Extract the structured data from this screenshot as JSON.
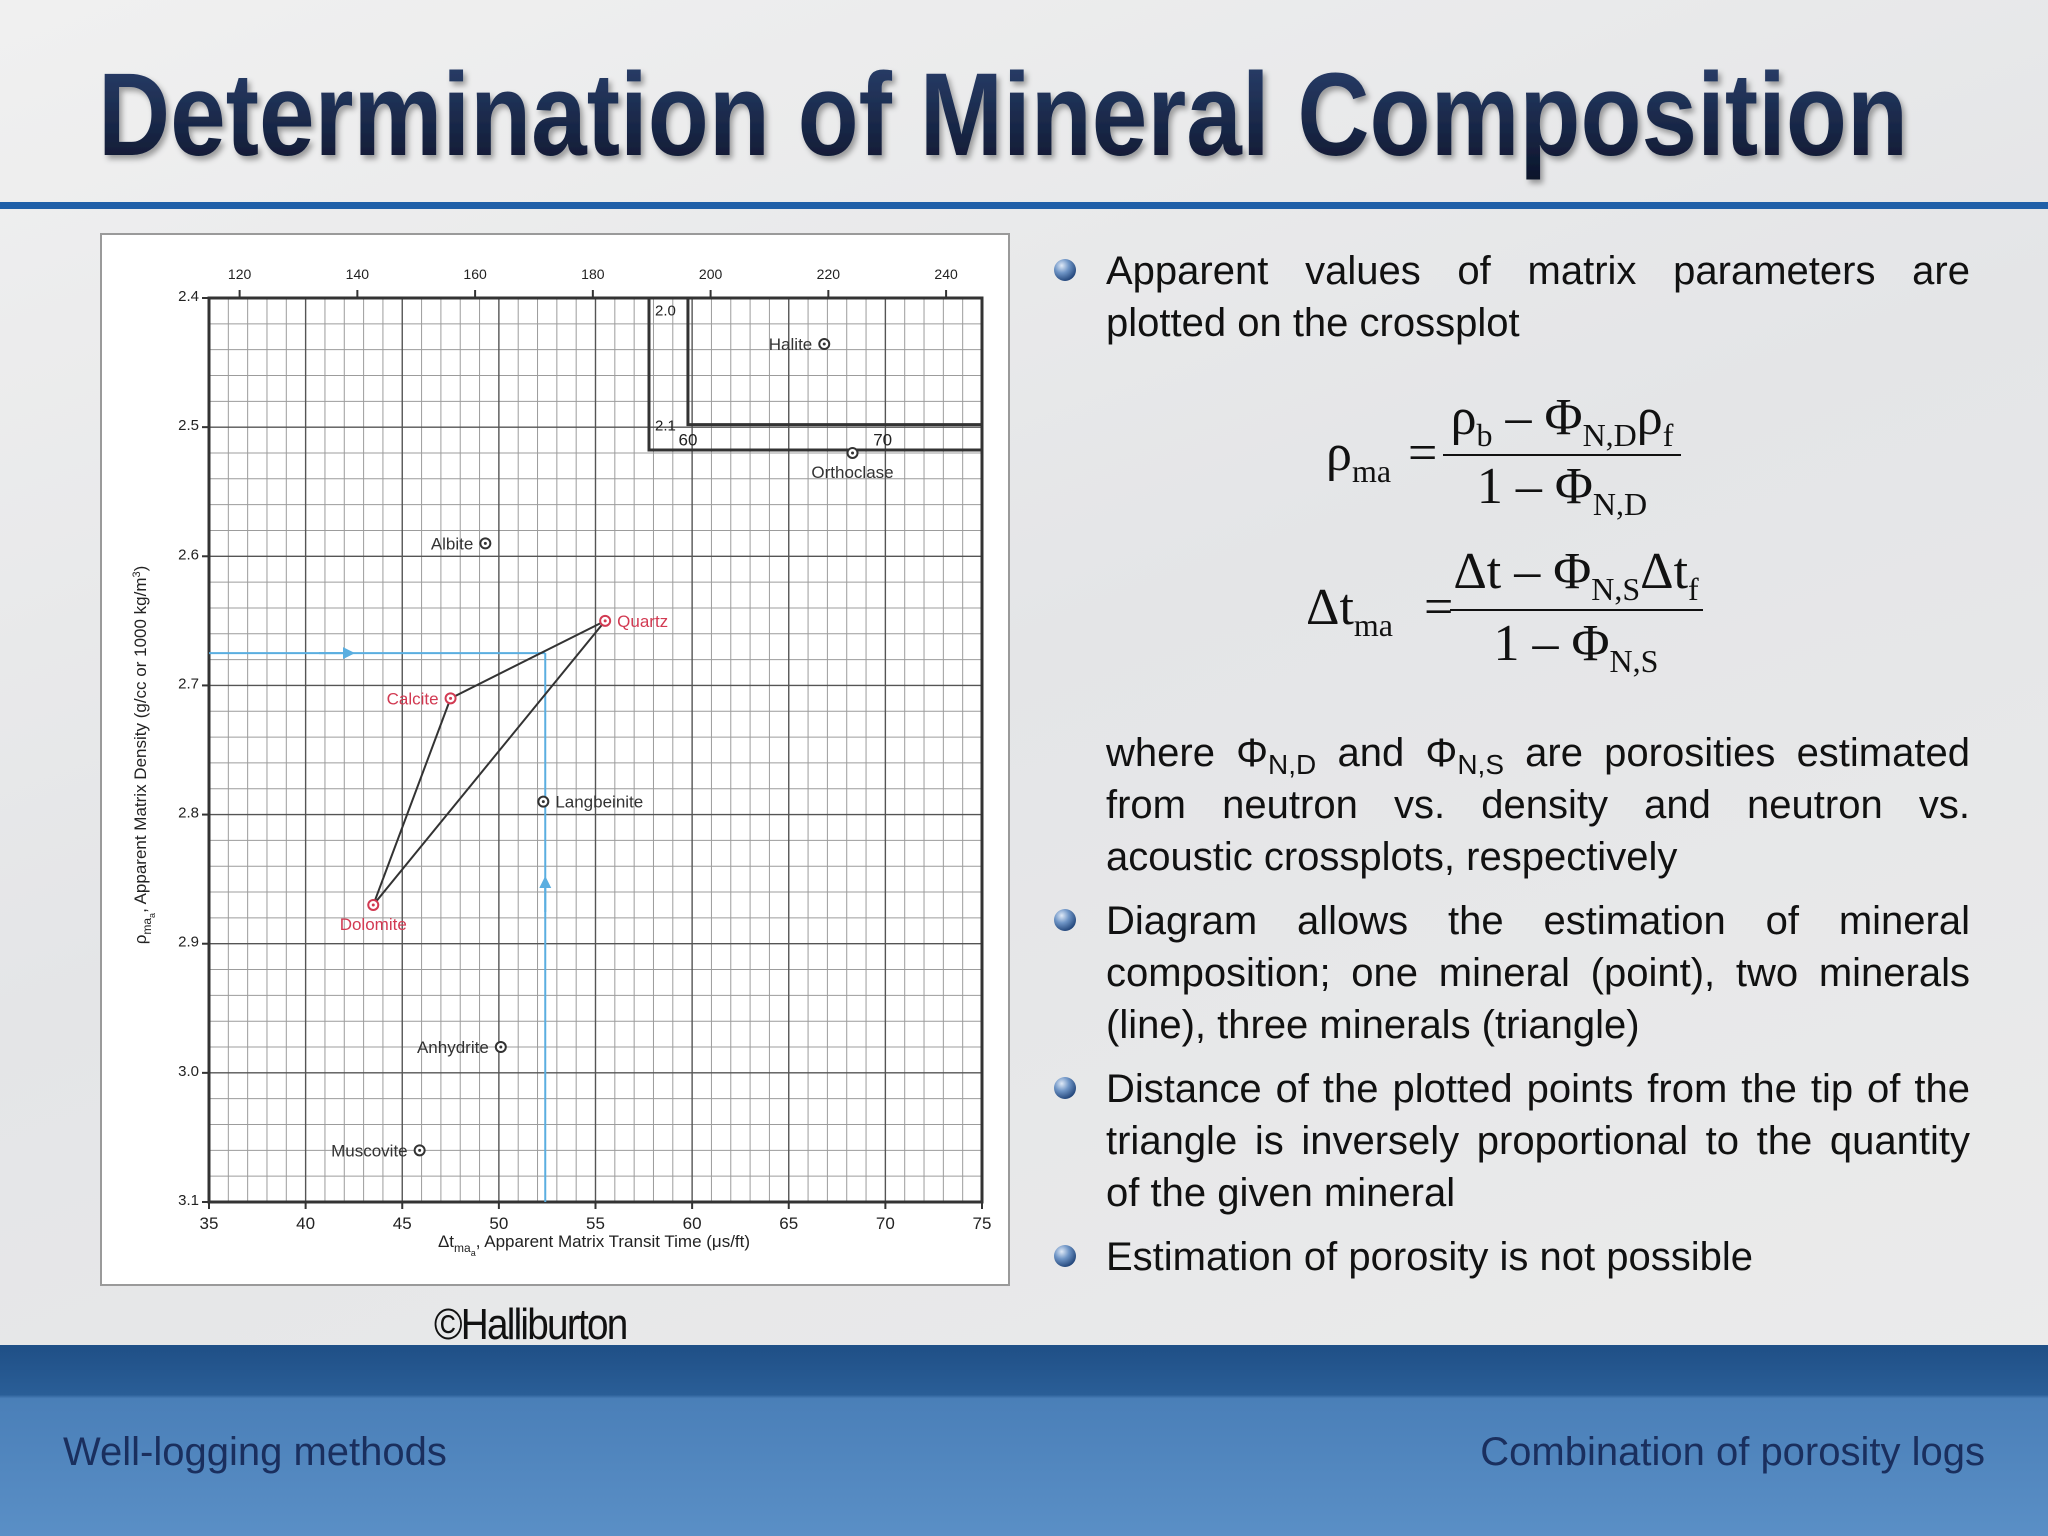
{
  "header": {
    "title": "Determination of Mineral Composition"
  },
  "chart_data": {
    "type": "scatter",
    "xlabel_parts": [
      "Δt",
      "ma",
      "a",
      ", Apparent Matrix Transit Time (μs/ft)"
    ],
    "ylabel_parts": [
      "ρ",
      "ma",
      "a",
      ", Apparent Matrix Density (g/cc or 1000 kg/m",
      "3",
      ")"
    ],
    "xlim": [
      35,
      75
    ],
    "xticks": [
      35,
      40,
      45,
      50,
      55,
      60,
      65,
      70,
      75
    ],
    "x2lim": [
      114.8,
      246.1
    ],
    "x2ticks": [
      120,
      140,
      160,
      180,
      200,
      220,
      240
    ],
    "ylim": [
      2.4,
      3.1
    ],
    "yticks": [
      2.4,
      2.5,
      2.6,
      2.7,
      2.8,
      2.9,
      {
        "value": 3,
        "label": "3.0"
      },
      3.1
    ],
    "y_inverted": true,
    "grid": true,
    "points": [
      {
        "label": "Quartz",
        "x": 55.5,
        "y": 2.65,
        "color": "#d23a52",
        "label_side": "right",
        "vertex": true
      },
      {
        "label": "Calcite",
        "x": 47.5,
        "y": 2.71,
        "color": "#d23a52",
        "label_side": "left",
        "vertex": true
      },
      {
        "label": "Dolomite",
        "x": 43.5,
        "y": 2.87,
        "color": "#d23a52",
        "label_side": "below",
        "vertex": true
      },
      {
        "label": "Albite",
        "x": 49.3,
        "y": 2.59,
        "color": "#333333",
        "label_side": "left"
      },
      {
        "label": "Langbeinite",
        "x": 52.3,
        "y": 2.79,
        "color": "#333333",
        "label_side": "right"
      },
      {
        "label": "Anhydrite",
        "x": 50.1,
        "y": 2.98,
        "color": "#333333",
        "label_side": "left"
      },
      {
        "label": "Muscovite",
        "x": 45.9,
        "y": 3.06,
        "color": "#333333",
        "label_side": "left"
      },
      {
        "label": "Orthoclase",
        "x": 68.3,
        "y": 2.52,
        "color": "#333333",
        "label_side": "below"
      }
    ],
    "triangle_color": "#333333",
    "example": {
      "x": 52.4,
      "y": 2.675,
      "color": "#5aaee0"
    },
    "inset": {
      "xlim": [
        58,
        75.1
      ],
      "ylim": [
        1.99,
        2.122
      ],
      "xticks": [
        60,
        70
      ],
      "yticks": [
        {
          "value": 2,
          "label": "2.0"
        },
        {
          "value": 2.1,
          "label": "2.1"
        }
      ],
      "points": [
        {
          "label": "Halite",
          "x": 67,
          "y": 2.03,
          "color": "#333333",
          "label_side": "left"
        }
      ]
    }
  },
  "credit": "©Halliburton",
  "bullets": [
    "Apparent values of matrix parameters are plotted on the crossplot",
    "Diagram allows the estimation of mineral composition; one mineral (point), two minerals (line), three minerals (triangle)",
    "Distance of the plotted points from the tip of the triangle is inversely proportional to the quantity of the given mineral",
    "Estimation of porosity is not possible"
  ],
  "equations": [
    {
      "lhs": [
        "ρ",
        "ma"
      ],
      "eq": "=",
      "num": [
        "ρ",
        "b",
        " – Φ",
        "N,D",
        "ρ",
        "f"
      ],
      "den": [
        "1 – Φ",
        "N,D"
      ]
    },
    {
      "lhs": [
        "Δt",
        "ma"
      ],
      "eq": "=",
      "num": [
        "Δt – Φ",
        "N,S",
        "Δt",
        "f"
      ],
      "den": [
        "1 – Φ",
        "N,S"
      ]
    }
  ],
  "note": [
    "where Φ",
    "N,D",
    " and Φ",
    "N,S",
    " are porosities estimated from neutron vs. density and neutron vs. acoustic crossplots, respectively"
  ],
  "footer": {
    "left": "Well-logging methods",
    "right": "Combination of porosity logs"
  }
}
